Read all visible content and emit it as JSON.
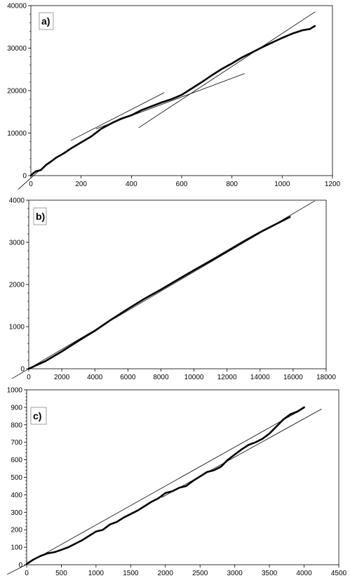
{
  "chart_data": [
    {
      "type": "line",
      "panel_label": "a)",
      "xlim": [
        0,
        1200
      ],
      "ylim": [
        0,
        40000
      ],
      "x_ticks": [
        "0",
        "200",
        "400",
        "600",
        "800",
        "1000",
        "1200"
      ],
      "y_ticks": [
        "0",
        "10000",
        "20000",
        "30000",
        "40000"
      ],
      "x_tick_values": [
        0,
        200,
        400,
        600,
        800,
        1000,
        1200
      ],
      "y_tick_values": [
        0,
        10000,
        20000,
        30000,
        40000
      ],
      "grid": false,
      "series": [
        {
          "role": "data",
          "x": [
            0,
            10,
            20,
            40,
            60,
            80,
            100,
            130,
            160,
            200,
            240,
            280,
            320,
            360,
            400,
            440,
            480,
            520,
            560,
            600,
            640,
            680,
            720,
            760,
            800,
            840,
            880,
            920,
            960,
            1000,
            1040,
            1080,
            1110,
            1130
          ],
          "y": [
            0,
            600,
            1000,
            1300,
            2500,
            3300,
            4200,
            5200,
            6400,
            7800,
            9200,
            11000,
            12300,
            13400,
            14200,
            15400,
            16300,
            17200,
            18000,
            19000,
            20500,
            22000,
            23600,
            25100,
            26400,
            27800,
            29000,
            30200,
            31300,
            32400,
            33400,
            34200,
            34500,
            35200
          ]
        },
        {
          "role": "fit",
          "x": [
            160,
            530
          ],
          "y": [
            8300,
            19500
          ]
        },
        {
          "role": "fit",
          "x": [
            260,
            850
          ],
          "y": [
            11000,
            24000
          ]
        },
        {
          "role": "fit",
          "x": [
            430,
            1130
          ],
          "y": [
            11300,
            38500
          ]
        },
        {
          "role": "fit",
          "x": [
            -50,
            60
          ],
          "y": [
            -3200,
            2600
          ]
        }
      ]
    },
    {
      "type": "line",
      "panel_label": "b)",
      "xlim": [
        0,
        18000
      ],
      "ylim": [
        0,
        4000
      ],
      "x_ticks": [
        "0",
        "2000",
        "4000",
        "6000",
        "8000",
        "10000",
        "12000",
        "14000",
        "16000",
        "18000"
      ],
      "y_ticks": [
        "0",
        "1000",
        "2000",
        "3000",
        "4000"
      ],
      "x_tick_values": [
        0,
        2000,
        4000,
        6000,
        8000,
        10000,
        12000,
        14000,
        16000,
        18000
      ],
      "y_tick_values": [
        0,
        1000,
        2000,
        3000,
        4000
      ],
      "grid": false,
      "series": [
        {
          "role": "data",
          "x": [
            0,
            500,
            1000,
            2000,
            3000,
            4000,
            5000,
            6000,
            7000,
            8000,
            9000,
            10000,
            11000,
            12000,
            13000,
            14000,
            15000,
            15800
          ],
          "y": [
            0,
            90,
            180,
            410,
            660,
            900,
            1170,
            1420,
            1660,
            1880,
            2110,
            2340,
            2560,
            2790,
            3020,
            3240,
            3440,
            3600
          ]
        },
        {
          "role": "fit",
          "x": [
            -1000,
            17300
          ],
          "y": [
            -230,
            3980
          ]
        }
      ]
    },
    {
      "type": "line",
      "panel_label": "c)",
      "xlim": [
        0,
        4500
      ],
      "ylim": [
        0,
        1000
      ],
      "x_ticks": [
        "0",
        "500",
        "1000",
        "1500",
        "2000",
        "2500",
        "3000",
        "3500",
        "4000",
        "4500"
      ],
      "y_ticks": [
        "0",
        "100",
        "200",
        "300",
        "400",
        "500",
        "600",
        "700",
        "800",
        "900",
        "1000"
      ],
      "x_tick_values": [
        0,
        500,
        1000,
        1500,
        2000,
        2500,
        3000,
        3500,
        4000,
        4500
      ],
      "y_tick_values": [
        0,
        100,
        200,
        300,
        400,
        500,
        600,
        700,
        800,
        900,
        1000
      ],
      "grid": false,
      "series": [
        {
          "role": "data",
          "x": [
            0,
            100,
            200,
            300,
            400,
            500,
            600,
            700,
            800,
            900,
            1000,
            1100,
            1200,
            1300,
            1400,
            1500,
            1600,
            1700,
            1800,
            1900,
            2000,
            2100,
            2200,
            2300,
            2400,
            2500,
            2600,
            2700,
            2800,
            2900,
            3000,
            3100,
            3200,
            3300,
            3400,
            3500,
            3600,
            3700,
            3800,
            3900,
            4000
          ],
          "y": [
            5,
            30,
            50,
            65,
            72,
            85,
            100,
            120,
            140,
            165,
            190,
            200,
            230,
            245,
            270,
            290,
            310,
            335,
            360,
            380,
            410,
            420,
            440,
            450,
            480,
            505,
            530,
            540,
            560,
            600,
            630,
            660,
            685,
            700,
            720,
            750,
            790,
            830,
            860,
            875,
            900
          ]
        },
        {
          "role": "fit",
          "x": [
            0,
            4000
          ],
          "y": [
            5,
            895
          ]
        },
        {
          "role": "fit",
          "x": [
            1950,
            4250
          ],
          "y": [
            385,
            890
          ]
        },
        {
          "role": "fit",
          "x": [
            -280,
            40
          ],
          "y": [
            -55,
            10
          ]
        }
      ]
    }
  ]
}
